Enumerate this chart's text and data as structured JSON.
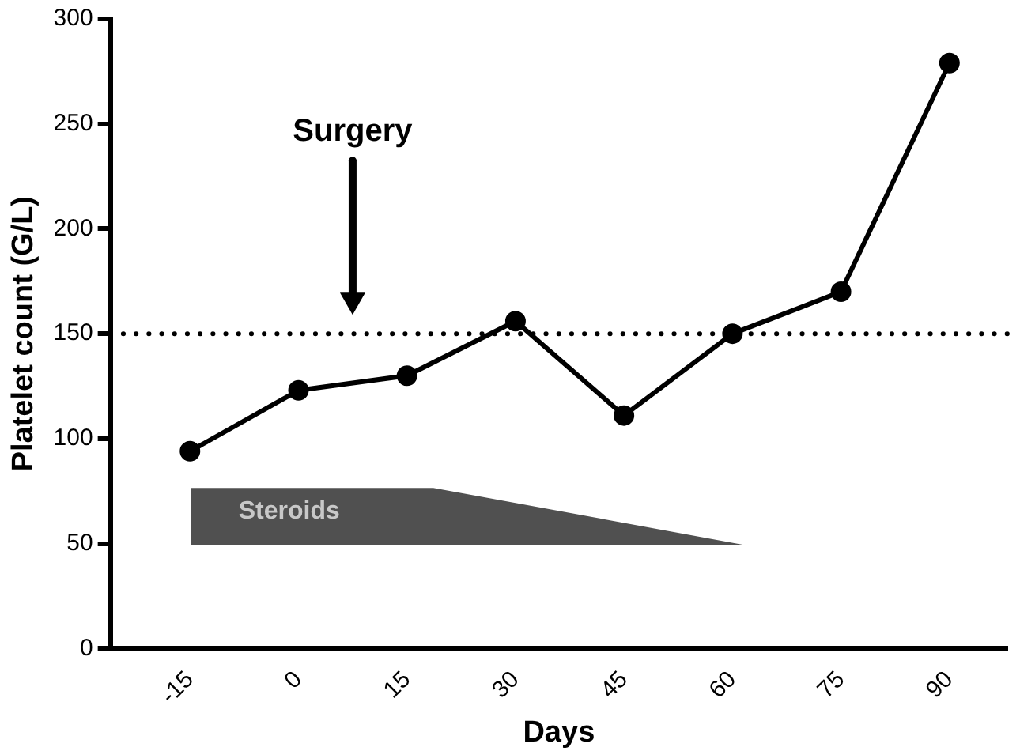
{
  "chart_data": {
    "type": "line",
    "xlabel": "Days",
    "ylabel": "Platelet count (G/L)",
    "x": [
      -15,
      0,
      15,
      30,
      45,
      60,
      75,
      90
    ],
    "series": [
      {
        "color": "#000000",
        "values": [
          94,
          123,
          130,
          156,
          111,
          150,
          170,
          279
        ]
      }
    ],
    "xlim": [
      -26,
      98
    ],
    "xticks": [
      -15,
      0,
      15,
      30,
      45,
      60,
      75,
      90
    ],
    "ylim": [
      0,
      300
    ],
    "yticks": [
      0,
      50,
      100,
      150,
      200,
      250,
      300
    ],
    "ref_lines": [
      {
        "axis": "y",
        "value": 150,
        "line_style": "dotted",
        "color": "#000000"
      }
    ],
    "annotations": [
      "Surgery",
      "Steroids"
    ],
    "grid": false,
    "legend": false,
    "marker": "circle",
    "line_style": "solid"
  }
}
